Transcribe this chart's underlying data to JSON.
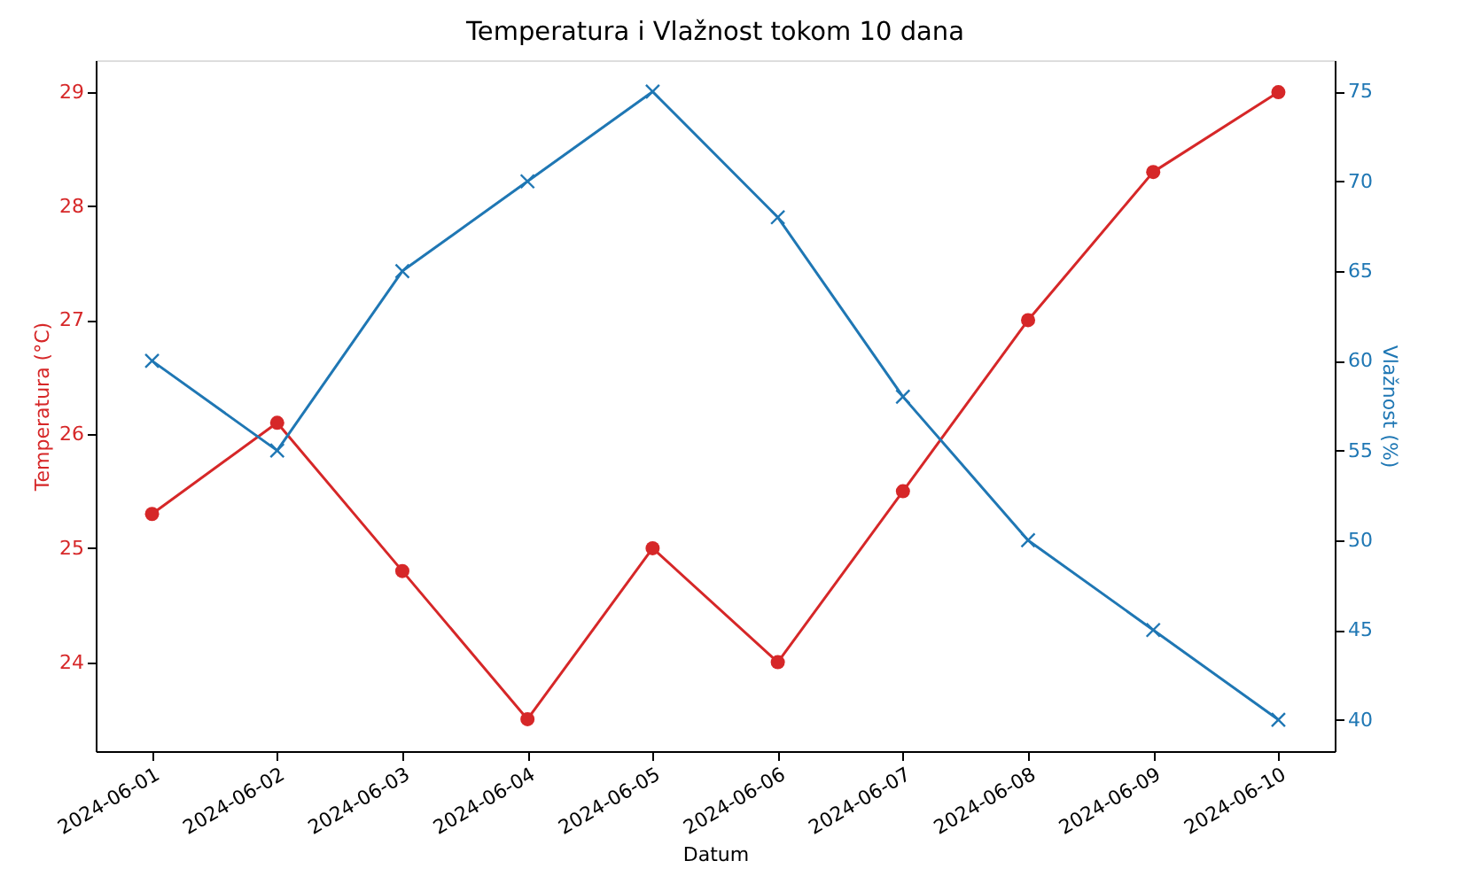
{
  "chart_data": {
    "type": "line",
    "title": "Temperatura i Vlažnost tokom 10 dana",
    "xlabel": "Datum",
    "ylabel": "Temperatura (°C)",
    "y2label": "Vlažnost (%)",
    "categories": [
      "2024-06-01",
      "2024-06-02",
      "2024-06-03",
      "2024-06-04",
      "2024-06-05",
      "2024-06-06",
      "2024-06-07",
      "2024-06-08",
      "2024-06-09",
      "2024-06-10"
    ],
    "series": [
      {
        "color": "#d62728",
        "marker": "circle",
        "values": [
          25.3,
          26.1,
          24.8,
          23.5,
          25.0,
          24.0,
          25.5,
          27.0,
          28.3,
          29.0
        ]
      },
      {
        "color": "#1f77b4",
        "marker": "cross",
        "axis": "y2",
        "values": [
          60,
          55,
          65,
          70,
          75,
          68,
          58,
          50,
          45,
          40
        ]
      }
    ],
    "ylim": [
      23.22,
      29.28
    ],
    "yticks": [
      24,
      25,
      26,
      27,
      28,
      29
    ],
    "y2lim": [
      38.25,
      76.75
    ],
    "y2ticks": [
      40,
      45,
      50,
      55,
      60,
      65,
      70,
      75
    ],
    "line_style": "solid"
  }
}
